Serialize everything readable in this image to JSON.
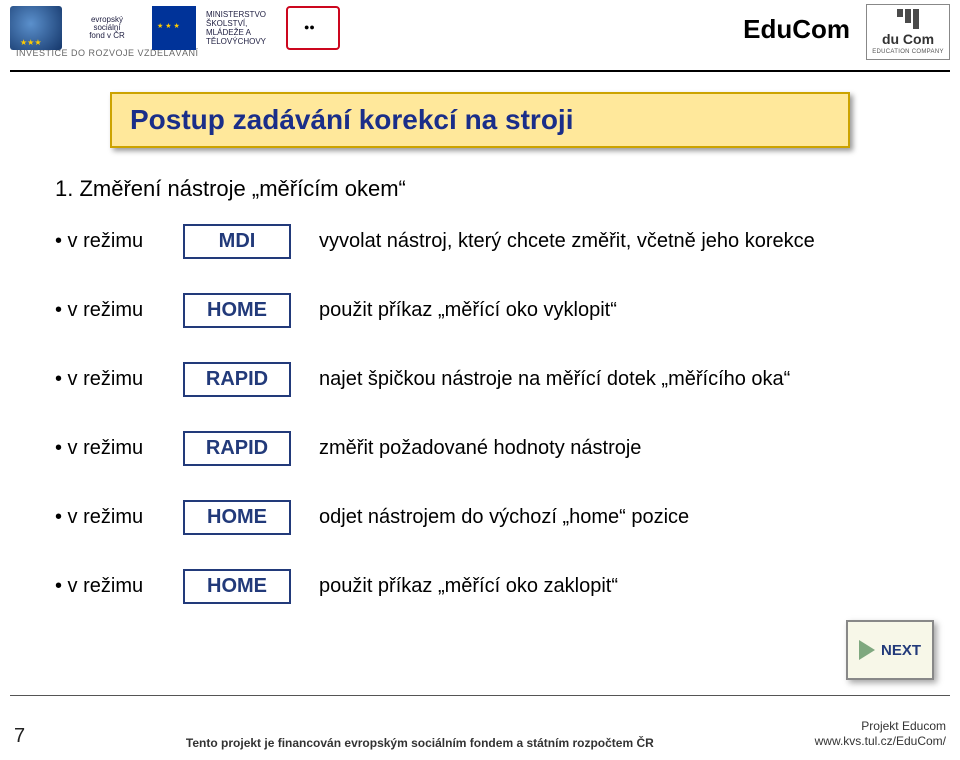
{
  "header": {
    "educom_label": "EduCom",
    "logo_right_text": "du Com",
    "logo_right_sub": "EDUCATION COMPANY",
    "invest_line": "INVESTICE DO ROZVOJE VZDĚLÁVÁNÍ",
    "esf_lines": [
      "evropský",
      "sociální",
      "fond v ČR"
    ],
    "msmt_lines": [
      "MINISTERSTVO ŠKOLSTVÍ,",
      "MLÁDEŽE A TĚLOVÝCHOVY"
    ]
  },
  "title": "Postup zadávání korekcí na stroji",
  "subheading": "1. Změření nástroje „měřícím okem“",
  "rows": [
    {
      "label": "• v režimu",
      "mode": "MDI",
      "desc": "vyvolat nástroj, který chcete změřit, včetně jeho korekce"
    },
    {
      "label": "• v režimu",
      "mode": "HOME",
      "desc": "použit příkaz „měřící oko vyklopit“"
    },
    {
      "label": "• v režimu",
      "mode": "RAPID",
      "desc": "najet špičkou nástroje na měřící dotek „měřícího oka“"
    },
    {
      "label": "• v režimu",
      "mode": "RAPID",
      "desc": "změřit požadované hodnoty nástroje"
    },
    {
      "label": "• v režimu",
      "mode": "HOME",
      "desc": "odjet nástrojem do výchozí „home“ pozice"
    },
    {
      "label": "• v režimu",
      "mode": "HOME",
      "desc": "použit příkaz „měřící oko zaklopit“"
    }
  ],
  "next_label": "NEXT",
  "footer": {
    "page": "7",
    "mid": "Tento projekt je financován evropským sociálním fondem a státním rozpočtem ČR",
    "right1": "Projekt Educom",
    "right2": "www.kvs.tul.cz/EduCom/"
  },
  "colors": {
    "title_bg": "#ffe89b",
    "title_border": "#cca300",
    "title_text": "#1a2e89",
    "mode_border": "#223a7a",
    "mode_text": "#223a7a",
    "next_text": "#223a7a",
    "next_bg": "#f7f7e8"
  }
}
